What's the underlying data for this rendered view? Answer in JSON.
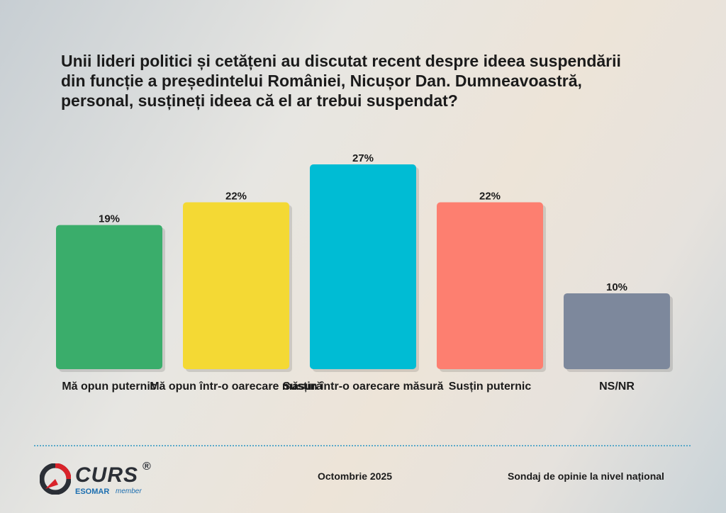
{
  "chart_data": {
    "type": "bar",
    "title": "Unii lideri politici și cetățeni au discutat recent despre ideea suspendării din funcție a președintelui României, Nicușor Dan. Dumneavoastră, personal, susțineți ideea că el ar trebui suspendat?",
    "categories": [
      "Mă opun puternic",
      "Mă opun într-o oarecare măsură",
      "Susțin într-o oarecare măsură",
      "Susțin puternic",
      "NS/NR"
    ],
    "values": [
      19,
      22,
      27,
      22,
      10
    ],
    "value_labels": [
      "19%",
      "22%",
      "27%",
      "22%",
      "10%"
    ],
    "colors": [
      "#3aad6b",
      "#f4d934",
      "#00bcd4",
      "#fd7f70",
      "#7d889c"
    ],
    "ylim": [
      0,
      27
    ],
    "grid": false
  },
  "footer": {
    "date": "Octombrie 2025",
    "source": "Sondaj de opinie la nivel național"
  },
  "logo": {
    "name": "CURS",
    "registered": "®",
    "sub": "ESOMAR",
    "sub_member": "member"
  }
}
